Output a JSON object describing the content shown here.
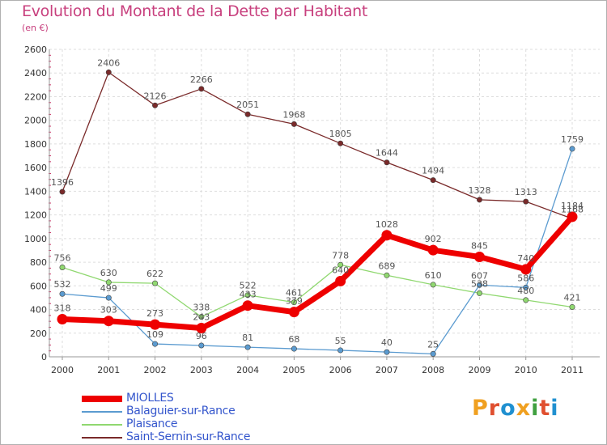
{
  "header": {
    "title": "Evolution du Montant de la Dette par Habitant",
    "subtitle": "(en €)"
  },
  "brand": {
    "text": "Proxiti",
    "colors": [
      "#f0a020",
      "#e05030",
      "#2090d0",
      "#f0a020",
      "#40a040",
      "#e05030",
      "#2090d0"
    ]
  },
  "chart_data": {
    "type": "line",
    "title": "Evolution du Montant de la Dette par Habitant",
    "subtitle": "(en €)",
    "xlabel": "",
    "ylabel": "",
    "ylim": [
      0,
      2600
    ],
    "yticks": [
      0,
      200,
      400,
      600,
      800,
      1000,
      1200,
      1400,
      1600,
      1800,
      2000,
      2200,
      2400,
      2600
    ],
    "x": [
      "2000",
      "2001",
      "2002",
      "2003",
      "2004",
      "2005",
      "2006",
      "2007",
      "2008",
      "2009",
      "2010",
      "2011"
    ],
    "grid": true,
    "legend_position": "bottom-left",
    "series": [
      {
        "name": "Saint-Sernin-sur-Rance",
        "color": "#7a2a2a",
        "values": [
          1396,
          2406,
          2126,
          2266,
          2051,
          1968,
          1805,
          1644,
          1494,
          1328,
          1313,
          1168
        ]
      },
      {
        "name": "Plaisance",
        "color": "#90d870",
        "values": [
          756,
          630,
          622,
          338,
          522,
          461,
          778,
          689,
          610,
          538,
          480,
          421
        ]
      },
      {
        "name": "Balaguier-sur-Rance",
        "color": "#5b9bd0",
        "values": [
          532,
          499,
          109,
          96,
          81,
          68,
          55,
          40,
          25,
          607,
          586,
          1759
        ]
      },
      {
        "name": "MIOLLES",
        "color": "#ee0000",
        "values": [
          318,
          303,
          273,
          243,
          433,
          379,
          640,
          1028,
          902,
          845,
          740,
          1184
        ]
      }
    ]
  }
}
